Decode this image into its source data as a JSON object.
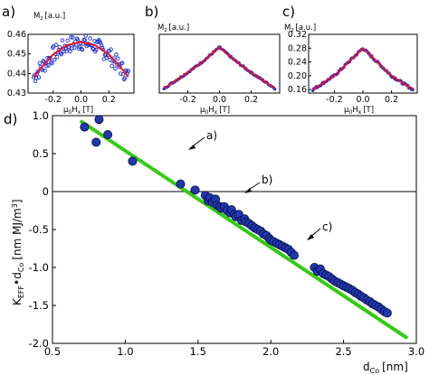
{
  "panel_letters": {
    "a": "a)",
    "b": "b)",
    "c": "c)",
    "d": "d)"
  },
  "annotations": [
    "a)",
    "b)",
    "c)"
  ],
  "colors": {
    "line_fit_top": "#e8102a",
    "points": "#1c2fd0",
    "points_fill_d": "#2038b0",
    "line_fit_d": "#33cc11"
  },
  "chart_data": [
    {
      "type": "scatter",
      "title": "a)",
      "ylabel_main": "M",
      "ylabel_sub": "z",
      "ylabel_unit": "[a.u.]",
      "xlabel_main": "μ",
      "xlabel_sub0": "0",
      "xlabel_mid": "H",
      "xlabel_sub1": "x",
      "xlabel_unit": "[T]",
      "xlim": [
        -0.38,
        0.38
      ],
      "ylim": [
        0.43,
        0.46
      ],
      "xticks": [
        -0.2,
        0.0,
        0.2
      ],
      "xtick_labels": [
        "-0.2",
        "0.0",
        "0.2"
      ],
      "yticks": [
        0.43,
        0.44,
        0.45,
        0.46
      ],
      "ytick_labels": [
        "0.43",
        "0.44",
        "0.45",
        "0.46"
      ],
      "marker": "open-circle",
      "fit": {
        "x": [
          -0.34,
          -0.3,
          -0.2,
          -0.1,
          0.0,
          0.1,
          0.2,
          0.3,
          0.34
        ],
        "y": [
          0.4382,
          0.4418,
          0.4497,
          0.4545,
          0.4561,
          0.4545,
          0.4497,
          0.4418,
          0.4382
        ]
      }
    },
    {
      "type": "scatter",
      "title": "b)",
      "ylabel_main": "M",
      "ylabel_sub": "z",
      "ylabel_unit": "[a.u.]",
      "xlabel_main": "μ",
      "xlabel_sub0": "0",
      "xlabel_mid": "H",
      "xlabel_sub1": "x",
      "xlabel_unit": "[T]",
      "xlim": [
        -0.38,
        0.38
      ],
      "ylim": [
        0.0,
        1.0
      ],
      "xticks": [
        -0.2,
        0.0,
        0.2
      ],
      "xtick_labels": [
        "-0.2",
        "0.0",
        "0.2"
      ],
      "marker": "filled-dot",
      "fit": {
        "x": [
          -0.35,
          -0.2,
          -0.1,
          0.0,
          0.1,
          0.2,
          0.35
        ],
        "y": [
          0.08,
          0.35,
          0.55,
          0.78,
          0.55,
          0.35,
          0.08
        ]
      }
    },
    {
      "type": "scatter",
      "title": "c)",
      "ylabel_main": "M",
      "ylabel_sub": "z",
      "ylabel_unit": "[a.u.]",
      "xlabel_main": "μ",
      "xlabel_sub0": "0",
      "xlabel_mid": "H",
      "xlabel_sub1": "x",
      "xlabel_unit": "[T]",
      "xlim": [
        -0.38,
        0.38
      ],
      "ylim": [
        0.15,
        0.32
      ],
      "xticks": [
        -0.2,
        0.0,
        0.2
      ],
      "xtick_labels": [
        "-0.2",
        "0.0",
        "0.2"
      ],
      "yticks": [
        0.16,
        0.2,
        0.24,
        0.28,
        0.32
      ],
      "ytick_labels": [
        "0.16",
        "0.20",
        "0.24",
        "0.28",
        "0.32"
      ],
      "marker": "filled-dot",
      "fit": {
        "x": [
          -0.35,
          -0.2,
          -0.1,
          0.0,
          0.1,
          0.2,
          0.35
        ],
        "y": [
          0.16,
          0.2,
          0.24,
          0.28,
          0.24,
          0.2,
          0.16
        ]
      }
    },
    {
      "type": "scatter",
      "title": "d)",
      "xlabel_main": "d",
      "xlabel_sub": "Co",
      "xlabel_unit": "[nm]",
      "ylabel_k": "K",
      "ylabel_ksub": "EFF",
      "ylabel_dot": "•d",
      "ylabel_dsub": "Co",
      "ylabel_unit": "[nm MJ/m",
      "ylabel_sup": "3",
      "ylabel_close": "]",
      "xlim": [
        0.5,
        3.0
      ],
      "ylim": [
        -2.0,
        1.0
      ],
      "xticks": [
        0.5,
        1.0,
        1.5,
        2.0,
        2.5,
        3.0
      ],
      "xtick_labels": [
        "0.5",
        "1.0",
        "1.5",
        "2.0",
        "2.5",
        "3.0"
      ],
      "yticks": [
        -2.0,
        -1.5,
        -1.0,
        -0.5,
        0.0,
        0.5,
        1.0
      ],
      "ytick_labels": [
        "-2.0",
        "-1.5",
        "-1.0",
        "-0.5",
        "0",
        "0.5",
        "1.0"
      ],
      "zero_line": true,
      "fit_line": {
        "x": [
          0.7,
          2.93
        ],
        "y": [
          0.92,
          -1.92
        ]
      },
      "points": {
        "x": [
          0.72,
          0.8,
          0.82,
          0.88,
          1.05,
          1.38,
          1.48,
          1.55,
          1.57,
          1.58,
          1.6,
          1.62,
          1.63,
          1.65,
          1.66,
          1.68,
          1.7,
          1.72,
          1.73,
          1.75,
          1.76,
          1.78,
          1.8,
          1.82,
          1.83,
          1.85,
          1.87,
          1.89,
          1.91,
          1.93,
          1.95,
          1.97,
          1.99,
          2.0,
          2.02,
          2.04,
          2.06,
          2.08,
          2.1,
          2.12,
          2.14,
          2.16,
          2.3,
          2.32,
          2.34,
          2.36,
          2.38,
          2.4,
          2.42,
          2.44,
          2.46,
          2.48,
          2.5,
          2.52,
          2.54,
          2.56,
          2.58,
          2.6,
          2.62,
          2.64,
          2.66,
          2.68,
          2.7,
          2.72,
          2.74,
          2.76,
          2.78,
          2.8
        ],
        "y": [
          0.85,
          0.65,
          0.95,
          0.75,
          0.4,
          0.1,
          0.02,
          -0.05,
          -0.12,
          -0.08,
          -0.14,
          -0.1,
          -0.18,
          -0.2,
          -0.22,
          -0.2,
          -0.25,
          -0.28,
          -0.24,
          -0.3,
          -0.33,
          -0.3,
          -0.38,
          -0.36,
          -0.4,
          -0.42,
          -0.45,
          -0.48,
          -0.5,
          -0.52,
          -0.56,
          -0.58,
          -0.62,
          -0.64,
          -0.66,
          -0.68,
          -0.7,
          -0.72,
          -0.74,
          -0.76,
          -0.8,
          -0.84,
          -1.0,
          -1.05,
          -1.02,
          -1.08,
          -1.1,
          -1.12,
          -1.15,
          -1.18,
          -1.2,
          -1.22,
          -1.24,
          -1.26,
          -1.28,
          -1.3,
          -1.33,
          -1.35,
          -1.38,
          -1.4,
          -1.43,
          -1.45,
          -1.48,
          -1.5,
          -1.52,
          -1.55,
          -1.58,
          -1.6
        ]
      }
    }
  ]
}
